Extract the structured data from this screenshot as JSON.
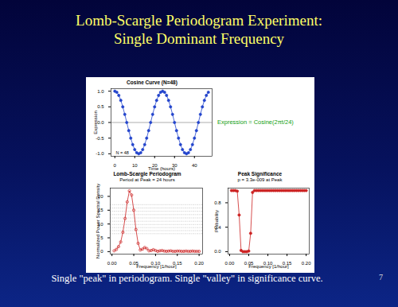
{
  "slide": {
    "title": [
      "Lomb-Scargle Periodogram Experiment:",
      "Single Dominant Frequency"
    ],
    "footer": "Single \"peak\" in periodogram. Single \"valley\" in significance curve.",
    "page": 7
  },
  "chart_data": [
    {
      "type": "line",
      "title": "Cosine Curve (N=48)",
      "xlabel": "Time (hours)",
      "ylabel": "Expression",
      "x": [
        0,
        1,
        2,
        3,
        4,
        5,
        6,
        7,
        8,
        9,
        10,
        11,
        12,
        13,
        14,
        15,
        16,
        17,
        18,
        19,
        20,
        21,
        22,
        23,
        24,
        25,
        26,
        27,
        28,
        29,
        30,
        31,
        32,
        33,
        34,
        35,
        36,
        37,
        38,
        39,
        40,
        41,
        42,
        43,
        44,
        45,
        46,
        47
      ],
      "values": [
        1,
        0.966,
        0.866,
        0.707,
        0.5,
        0.259,
        0,
        -0.259,
        -0.5,
        -0.707,
        -0.866,
        -0.966,
        -1,
        -0.966,
        -0.866,
        -0.707,
        -0.5,
        -0.259,
        0,
        0.259,
        0.5,
        0.707,
        0.866,
        0.966,
        1,
        0.966,
        0.866,
        0.707,
        0.5,
        0.259,
        0,
        -0.259,
        -0.5,
        -0.707,
        -0.866,
        -0.966,
        -1,
        -0.966,
        -0.866,
        -0.707,
        -0.5,
        -0.259,
        0,
        0.259,
        0.5,
        0.707,
        0.866,
        0.966
      ],
      "color": "#2244cc",
      "marker": "circle",
      "xlim": [
        -1.9,
        48.9
      ],
      "xticks": [
        0,
        10,
        20,
        30,
        40
      ],
      "ylim": [
        -1.08,
        1.08
      ],
      "yticks": [
        {
          "value": -1,
          "label": "-1.0"
        },
        {
          "value": -0.5,
          "label": "-0.5"
        },
        {
          "value": 0,
          "label": "0.0"
        },
        {
          "value": 0.5,
          "label": "0.5"
        },
        {
          "value": 1,
          "label": "1.0"
        }
      ],
      "hlines": [
        0
      ],
      "annotations": [
        "Expression = Cosine(2πt/24)",
        "N = 48"
      ]
    },
    {
      "type": "line",
      "title": "Lomb-Scargle Periodogram",
      "subtitle": "Period at Peak = 24 hours",
      "xlabel": "Frequency [1/hour]",
      "ylabel": "Normalized Power Spectral Density",
      "x": [
        0.005,
        0.01,
        0.015,
        0.02,
        0.025,
        0.03,
        0.035,
        0.04,
        0.045,
        0.05,
        0.055,
        0.06,
        0.065,
        0.07,
        0.075,
        0.08,
        0.085,
        0.09,
        0.095,
        0.1,
        0.105,
        0.11,
        0.115,
        0.12,
        0.125,
        0.13,
        0.135,
        0.14,
        0.145,
        0.15,
        0.155,
        0.16,
        0.165,
        0.17,
        0.175,
        0.18,
        0.185,
        0.19,
        0.195,
        0.2
      ],
      "values": [
        0.3,
        0.8,
        1.8,
        3.5,
        7,
        12,
        18,
        22,
        20.5,
        15,
        8,
        3,
        0.6,
        0.9,
        1.5,
        1.1,
        0.3,
        0.4,
        0.7,
        0.4,
        0.1,
        0.3,
        0.4,
        0.2,
        0.1,
        0.2,
        0.3,
        0.1,
        0.1,
        0.2,
        0.2,
        0.1,
        0.1,
        0.2,
        0.1,
        0.1,
        0.2,
        0.1,
        0.1,
        0.1
      ],
      "color": "#cc2222",
      "marker": "open_circle",
      "xlim": [
        -0.004,
        0.208
      ],
      "xticks": [
        {
          "value": 0,
          "label": "0.00"
        },
        {
          "value": 0.05,
          "label": "0.05"
        },
        {
          "value": 0.1,
          "label": "0.10"
        },
        {
          "value": 0.15,
          "label": "0.15"
        },
        {
          "value": 0.2,
          "label": "0.20"
        }
      ],
      "ylim": [
        -0.9,
        23
      ],
      "yticks": [
        0,
        5,
        10,
        15,
        20
      ],
      "significance_levels": [
        6.5,
        7.6,
        8.7,
        9.8,
        11,
        12.2,
        13.4,
        14.6,
        15.8,
        17
      ]
    },
    {
      "type": "line",
      "title": "Peak Significance",
      "subtitle": "p = 3.3e-009 at Peak",
      "xlabel": "Frequency [1/hour]",
      "ylabel": "Probability",
      "x": [
        0.005,
        0.01,
        0.015,
        0.02,
        0.025,
        0.03,
        0.035,
        0.04,
        0.045,
        0.05,
        0.055,
        0.06,
        0.065,
        0.07,
        0.075,
        0.08,
        0.085,
        0.09,
        0.095,
        0.1,
        0.105,
        0.11,
        0.115,
        0.12,
        0.125,
        0.13,
        0.135,
        0.14,
        0.145,
        0.15,
        0.155,
        0.16,
        0.165,
        0.17,
        0.175,
        0.18,
        0.185,
        0.19,
        0.195,
        0.2
      ],
      "values": [
        1,
        1,
        1,
        0.99,
        0.6,
        0.02,
        0,
        0,
        0,
        0.01,
        0.3,
        0.97,
        1,
        1,
        1,
        1,
        1,
        1,
        1,
        1,
        1,
        1,
        1,
        1,
        1,
        1,
        1,
        1,
        1,
        1,
        1,
        1,
        1,
        1,
        1,
        1,
        1,
        1,
        1,
        1
      ],
      "color": "#cc2222",
      "marker": "circle",
      "xlim": [
        -0.004,
        0.208
      ],
      "xticks": [
        {
          "value": 0,
          "label": "0.00"
        },
        {
          "value": 0.05,
          "label": "0.05"
        },
        {
          "value": 0.1,
          "label": "0.10"
        },
        {
          "value": 0.15,
          "label": "0.15"
        },
        {
          "value": 0.2,
          "label": "0.20"
        }
      ],
      "ylim": [
        -0.04,
        1.04
      ],
      "yticks": [
        {
          "value": 0,
          "label": "0.0"
        },
        {
          "value": 0.4,
          "label": "0.4"
        },
        {
          "value": 0.8,
          "label": "0.8"
        }
      ]
    }
  ]
}
